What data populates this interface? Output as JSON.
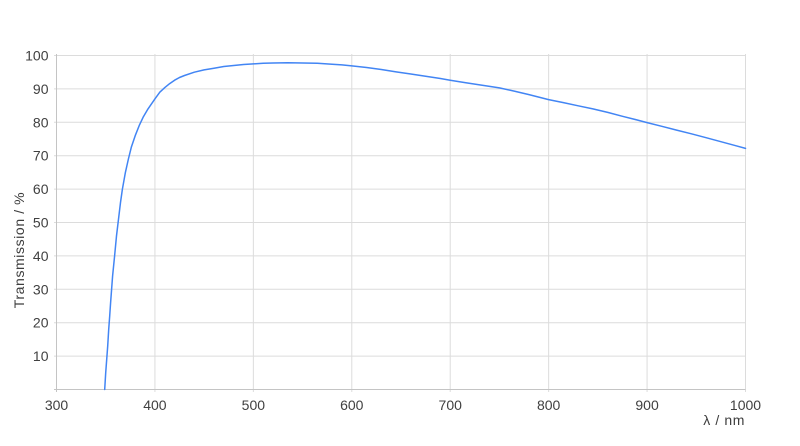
{
  "chart_data": {
    "type": "line",
    "title": "",
    "xlabel": "λ / nm",
    "ylabel": "Transmission / %",
    "xlim": [
      300,
      1000
    ],
    "ylim": [
      0,
      100
    ],
    "x_ticks": [
      300,
      400,
      500,
      600,
      700,
      800,
      900,
      1000
    ],
    "y_ticks": [
      10,
      20,
      30,
      40,
      50,
      60,
      70,
      80,
      90,
      100
    ],
    "grid": true,
    "legend": "none",
    "colors": {
      "line": "#4285f4",
      "grid": "#dcdcdc",
      "axis": "#c4c4c4",
      "label": "#404040",
      "background": "#ffffff"
    },
    "series": [
      {
        "name": "Transmission",
        "points": [
          [
            349,
            0
          ],
          [
            350,
            5
          ],
          [
            351,
            9
          ],
          [
            352,
            13
          ],
          [
            353,
            18
          ],
          [
            354,
            22
          ],
          [
            355,
            26
          ],
          [
            356,
            30
          ],
          [
            357,
            34
          ],
          [
            358,
            37
          ],
          [
            359,
            40
          ],
          [
            361,
            46
          ],
          [
            363,
            51
          ],
          [
            365,
            56
          ],
          [
            367,
            60
          ],
          [
            370,
            65
          ],
          [
            373,
            69
          ],
          [
            376,
            72.5
          ],
          [
            380,
            76
          ],
          [
            384,
            79
          ],
          [
            388,
            81.5
          ],
          [
            393,
            84
          ],
          [
            400,
            87
          ],
          [
            405,
            89
          ],
          [
            410,
            90.4
          ],
          [
            415,
            91.6
          ],
          [
            420,
            92.6
          ],
          [
            425,
            93.4
          ],
          [
            430,
            94
          ],
          [
            440,
            95
          ],
          [
            450,
            95.7
          ],
          [
            460,
            96.2
          ],
          [
            470,
            96.7
          ],
          [
            480,
            97
          ],
          [
            490,
            97.3
          ],
          [
            500,
            97.5
          ],
          [
            510,
            97.65
          ],
          [
            520,
            97.75
          ],
          [
            535,
            97.8
          ],
          [
            550,
            97.75
          ],
          [
            565,
            97.65
          ],
          [
            580,
            97.4
          ],
          [
            590,
            97.2
          ],
          [
            600,
            96.9
          ],
          [
            615,
            96.4
          ],
          [
            630,
            95.8
          ],
          [
            645,
            95.1
          ],
          [
            660,
            94.45
          ],
          [
            675,
            93.8
          ],
          [
            690,
            93.1
          ],
          [
            700,
            92.6
          ],
          [
            715,
            91.9
          ],
          [
            730,
            91.2
          ],
          [
            740,
            90.75
          ],
          [
            750,
            90.3
          ],
          [
            765,
            89.35
          ],
          [
            780,
            88.3
          ],
          [
            790,
            87.55
          ],
          [
            800,
            86.8
          ],
          [
            815,
            85.9
          ],
          [
            830,
            84.95
          ],
          [
            845,
            84
          ],
          [
            860,
            82.95
          ],
          [
            875,
            81.8
          ],
          [
            890,
            80.7
          ],
          [
            900,
            79.9
          ],
          [
            915,
            78.8
          ],
          [
            930,
            77.65
          ],
          [
            945,
            76.55
          ],
          [
            960,
            75.4
          ],
          [
            975,
            74.2
          ],
          [
            990,
            73
          ],
          [
            1000,
            72.2
          ]
        ]
      }
    ]
  }
}
